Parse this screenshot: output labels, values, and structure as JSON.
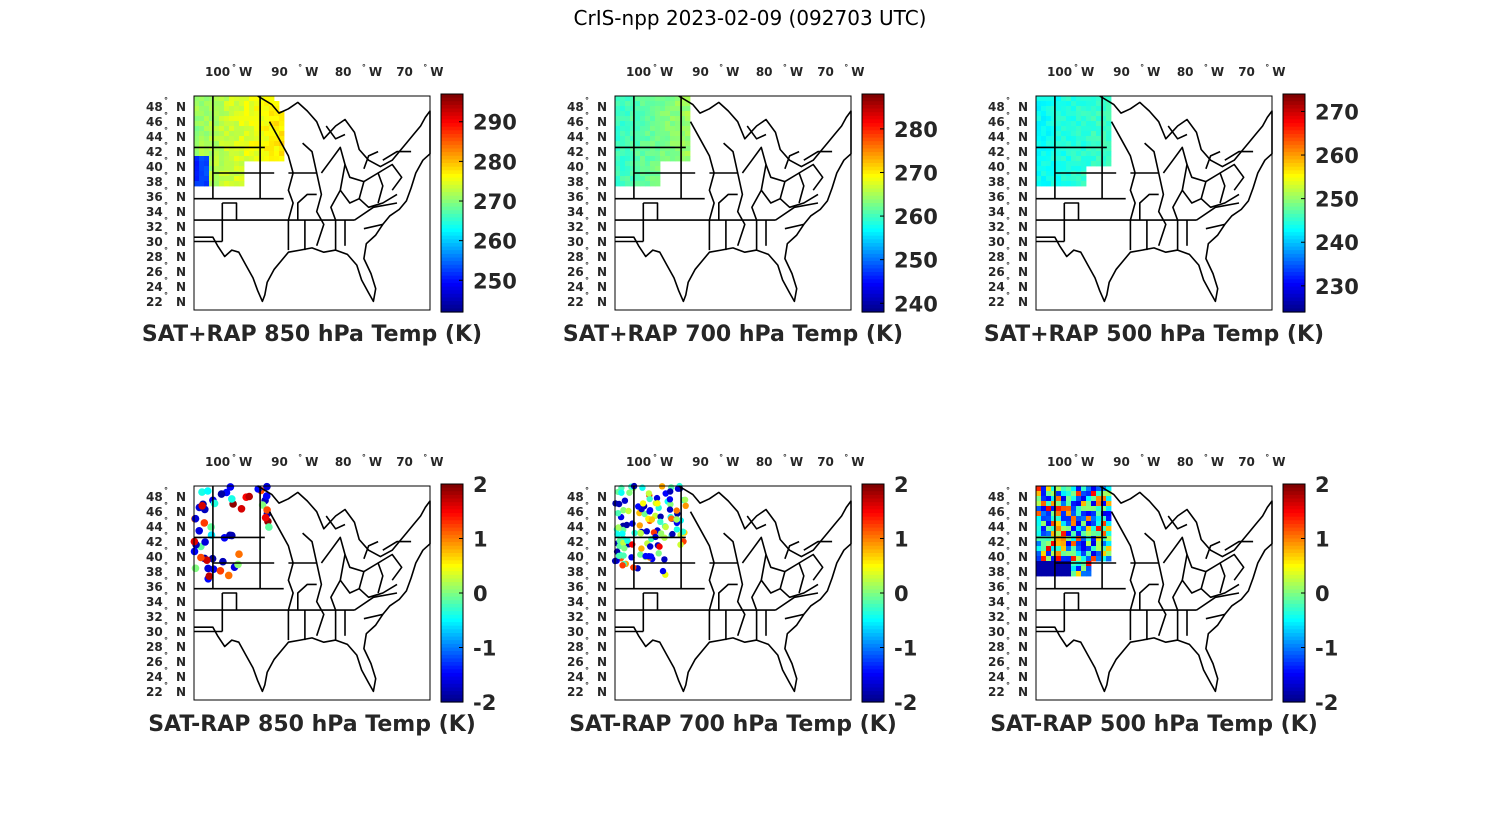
{
  "figure": {
    "title": "CrIS-npp 2023-02-09 (092703 UTC)"
  },
  "map": {
    "lon_ticks": [
      "100",
      "90",
      "80",
      "70"
    ],
    "lon_hemi": "W",
    "lat_ticks": [
      "48",
      "46",
      "44",
      "42",
      "40",
      "38",
      "36",
      "34",
      "32",
      "30",
      "28",
      "26",
      "24",
      "22"
    ],
    "lat_hemi": "N",
    "degree_symbol": "°"
  },
  "colors": {
    "map_frame": "#000000",
    "text": "#262626",
    "colormap": [
      "#00008f",
      "#0000ff",
      "#0080ff",
      "#00ffff",
      "#80ff80",
      "#ffff00",
      "#ff8000",
      "#ff0000",
      "#800000"
    ]
  },
  "panels": [
    {
      "title": "SAT+RAP 850 hPa Temp (K)",
      "colorbar": [
        "290",
        "280",
        "270",
        "260",
        "250"
      ],
      "cb_min": 242,
      "cb_max": 297,
      "tick_values": [
        290,
        280,
        270,
        260,
        250
      ],
      "field": "temp850"
    },
    {
      "title": "SAT+RAP 700 hPa Temp (K)",
      "colorbar": [
        "280",
        "270",
        "260",
        "250",
        "240"
      ],
      "cb_min": 238,
      "cb_max": 288,
      "tick_values": [
        280,
        270,
        260,
        250,
        240
      ],
      "field": "temp700"
    },
    {
      "title": "SAT+RAP 500 hPa Temp (K)",
      "colorbar": [
        "270",
        "260",
        "250",
        "240",
        "230"
      ],
      "cb_min": 224,
      "cb_max": 274,
      "tick_values": [
        270,
        260,
        250,
        240,
        230
      ],
      "field": "temp500"
    },
    {
      "title": "SAT-RAP 850 hPa Temp (K)",
      "colorbar": [
        "2",
        "1",
        "0",
        "-1",
        "-2"
      ],
      "cb_min": -2,
      "cb_max": 2,
      "tick_values": [
        2,
        1,
        0,
        -1,
        -2
      ],
      "field": "diff850"
    },
    {
      "title": "SAT-RAP 700 hPa Temp (K)",
      "colorbar": [
        "2",
        "1",
        "0",
        "-1",
        "-2"
      ],
      "cb_min": -2,
      "cb_max": 2,
      "tick_values": [
        2,
        1,
        0,
        -1,
        -2
      ],
      "field": "diff700"
    },
    {
      "title": "SAT-RAP 500 hPa Temp (K)",
      "colorbar": [
        "2",
        "1",
        "0",
        "-1",
        "-2"
      ],
      "cb_min": -2,
      "cb_max": 2,
      "tick_values": [
        2,
        1,
        0,
        -1,
        -2
      ],
      "field": "diff500"
    }
  ]
}
